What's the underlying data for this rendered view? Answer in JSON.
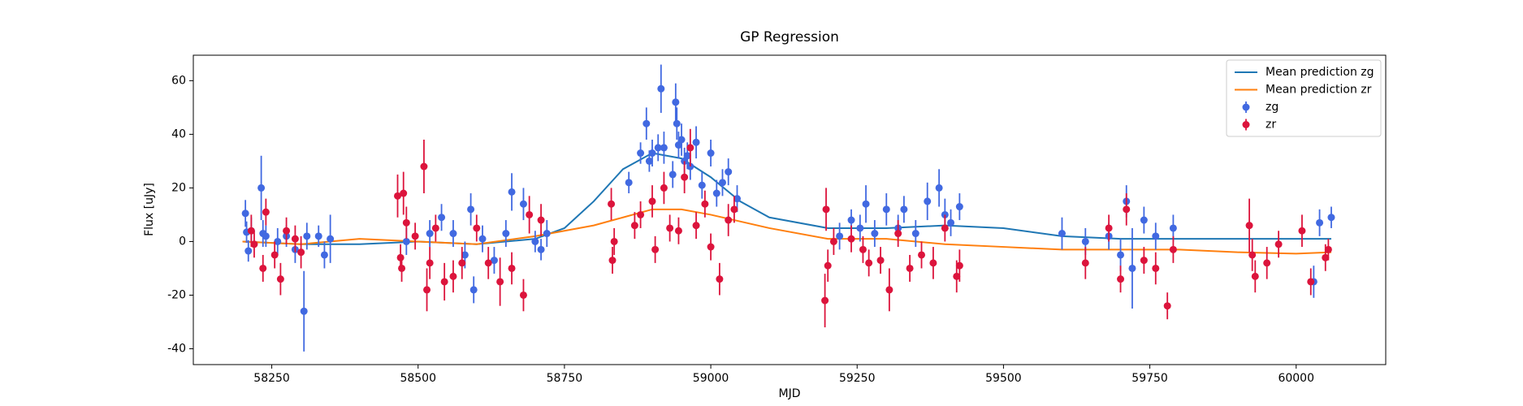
{
  "chart_data": {
    "type": "scatter",
    "title": "GP Regression",
    "x_label": "MJD",
    "y_label": "Flux [uJy]",
    "xlim": [
      58116,
      60153
    ],
    "ylim": [
      -45.9,
      69.5
    ],
    "xticks": [
      58250,
      58500,
      58750,
      59000,
      59250,
      59500,
      59750,
      60000
    ],
    "yticks": [
      -40,
      -20,
      0,
      20,
      40,
      60
    ],
    "legend": "upper right",
    "series": [
      {
        "name": "Mean prediction zg",
        "kind": "line",
        "color": "#1f77b4",
        "x": [
          58200,
          58300,
          58400,
          58500,
          58600,
          58700,
          58750,
          58800,
          58850,
          58900,
          58950,
          59000,
          59050,
          59100,
          59200,
          59300,
          59400,
          59500,
          59600,
          59700,
          59800,
          59900,
          60000,
          60060
        ],
        "values": [
          0,
          -1,
          -1,
          0,
          -1,
          1,
          5,
          15,
          27,
          33,
          31,
          24,
          15,
          9,
          5,
          5,
          6,
          5,
          2,
          1,
          1,
          1,
          1,
          1
        ]
      },
      {
        "name": "Mean prediction zr",
        "kind": "line",
        "color": "#ff7f0e",
        "x": [
          58200,
          58300,
          58400,
          58500,
          58600,
          58700,
          58800,
          58850,
          58900,
          58950,
          59000,
          59100,
          59200,
          59300,
          59400,
          59500,
          59600,
          59700,
          59800,
          59900,
          60000,
          60060
        ],
        "values": [
          0,
          -1,
          1,
          0,
          -1,
          2,
          6,
          9,
          12,
          12,
          10,
          5,
          1,
          1,
          -1,
          -2,
          -3,
          -3,
          -3,
          -4,
          -4.5,
          -4
        ]
      },
      {
        "name": "zg",
        "kind": "errorbar",
        "color": "#4169e1",
        "x": [
          58205,
          58207,
          58210,
          58215,
          58232,
          58235,
          58240,
          58260,
          58275,
          58290,
          58305,
          58310,
          58330,
          58340,
          58350,
          58480,
          58520,
          58540,
          58560,
          58580,
          58590,
          58595,
          58610,
          58630,
          58650,
          58660,
          58680,
          58700,
          58710,
          58720,
          58860,
          58880,
          58890,
          58895,
          58900,
          58910,
          58915,
          58920,
          58935,
          58940,
          58942,
          58945,
          58950,
          58955,
          58960,
          58965,
          58975,
          58985,
          59000,
          59010,
          59020,
          59030,
          59045,
          59220,
          59240,
          59255,
          59265,
          59280,
          59300,
          59320,
          59330,
          59350,
          59370,
          59390,
          59400,
          59410,
          59425,
          59600,
          59640,
          59680,
          59700,
          59710,
          59720,
          59740,
          59760,
          59790,
          60030,
          60040,
          60060
        ],
        "values": [
          10.5,
          3.5,
          -3.5,
          4,
          20,
          3,
          2,
          0,
          2,
          -3,
          -26,
          2,
          2,
          -5,
          1,
          0,
          3,
          9,
          3,
          -5,
          12,
          -18,
          1,
          -7,
          3,
          18.5,
          14,
          0,
          -3,
          3,
          22,
          33,
          44,
          30,
          33,
          35,
          57,
          35,
          25,
          52,
          44,
          36,
          38,
          30,
          32,
          28,
          37,
          21,
          33,
          18,
          22,
          26,
          16,
          2,
          8,
          5,
          14,
          3,
          12,
          5,
          12,
          3,
          15,
          20,
          10,
          7,
          13,
          3,
          0,
          2,
          -5,
          15,
          -10,
          8,
          2,
          5,
          -15,
          7,
          9
        ],
        "errors": [
          5,
          4,
          4,
          5,
          12,
          5,
          4,
          5,
          4,
          5,
          15,
          5,
          4,
          5,
          9,
          5,
          5,
          5,
          5,
          5,
          6,
          5,
          5,
          5,
          5,
          7,
          6,
          4,
          4,
          5,
          4,
          4,
          6,
          4,
          5,
          5,
          9,
          6,
          5,
          7,
          6,
          5,
          6,
          5,
          5,
          5,
          6,
          5,
          5,
          5,
          5,
          5,
          5,
          5,
          4,
          5,
          7,
          5,
          6,
          5,
          5,
          5,
          7,
          7,
          6,
          5,
          5,
          6,
          5,
          5,
          6,
          6,
          15,
          5,
          5,
          5,
          6,
          5,
          4
        ]
      },
      {
        "name": "zr",
        "kind": "errorbar",
        "color": "#dc143c",
        "x": [
          58215,
          58220,
          58235,
          58240,
          58255,
          58265,
          58275,
          58290,
          58300,
          58465,
          58470,
          58472,
          58475,
          58480,
          58495,
          58510,
          58515,
          58520,
          58530,
          58545,
          58560,
          58575,
          58600,
          58620,
          58640,
          58660,
          58680,
          58690,
          58710,
          58830,
          58832,
          58835,
          58870,
          58880,
          58900,
          58905,
          58920,
          58930,
          58945,
          58955,
          58965,
          58975,
          58990,
          59000,
          59015,
          59030,
          59040,
          59195,
          59197,
          59200,
          59210,
          59240,
          59260,
          59270,
          59290,
          59305,
          59320,
          59340,
          59360,
          59380,
          59400,
          59420,
          59425,
          59640,
          59680,
          59700,
          59710,
          59740,
          59760,
          59780,
          59790,
          59920,
          59925,
          59930,
          59950,
          59970,
          60010,
          60025,
          60050,
          60055
        ],
        "values": [
          4,
          -1,
          -10,
          11,
          -5,
          -14,
          4,
          1,
          -4,
          17,
          -6,
          -10,
          18,
          7,
          2,
          28,
          -18,
          -8,
          5,
          -15,
          -13,
          -8,
          5,
          -8,
          -15,
          -10,
          -20,
          10,
          8,
          14,
          -7,
          0,
          6,
          10,
          15,
          -3,
          20,
          5,
          4,
          24,
          35,
          6,
          14,
          -2,
          -14,
          8,
          12,
          -22,
          12,
          -9,
          0,
          1,
          -3,
          -8,
          -7,
          -18,
          3,
          -10,
          -5,
          -8,
          5,
          -13,
          -9,
          -8,
          5,
          -14,
          12,
          -7,
          -10,
          -24,
          -3,
          6,
          -5,
          -13,
          -8,
          -1,
          4,
          -15,
          -6,
          -3
        ],
        "errors": [
          6,
          5,
          5,
          5,
          5,
          6,
          5,
          5,
          6,
          8,
          5,
          5,
          8,
          6,
          5,
          10,
          8,
          6,
          5,
          7,
          6,
          6,
          5,
          6,
          9,
          6,
          6,
          7,
          6,
          6,
          5,
          5,
          5,
          5,
          6,
          5,
          6,
          5,
          5,
          6,
          7,
          5,
          5,
          5,
          6,
          6,
          5,
          10,
          8,
          6,
          5,
          5,
          5,
          5,
          5,
          8,
          5,
          5,
          5,
          6,
          5,
          6,
          6,
          6,
          5,
          5,
          6,
          5,
          6,
          5,
          5,
          10,
          6,
          6,
          6,
          5,
          6,
          5,
          5,
          4
        ]
      }
    ]
  }
}
